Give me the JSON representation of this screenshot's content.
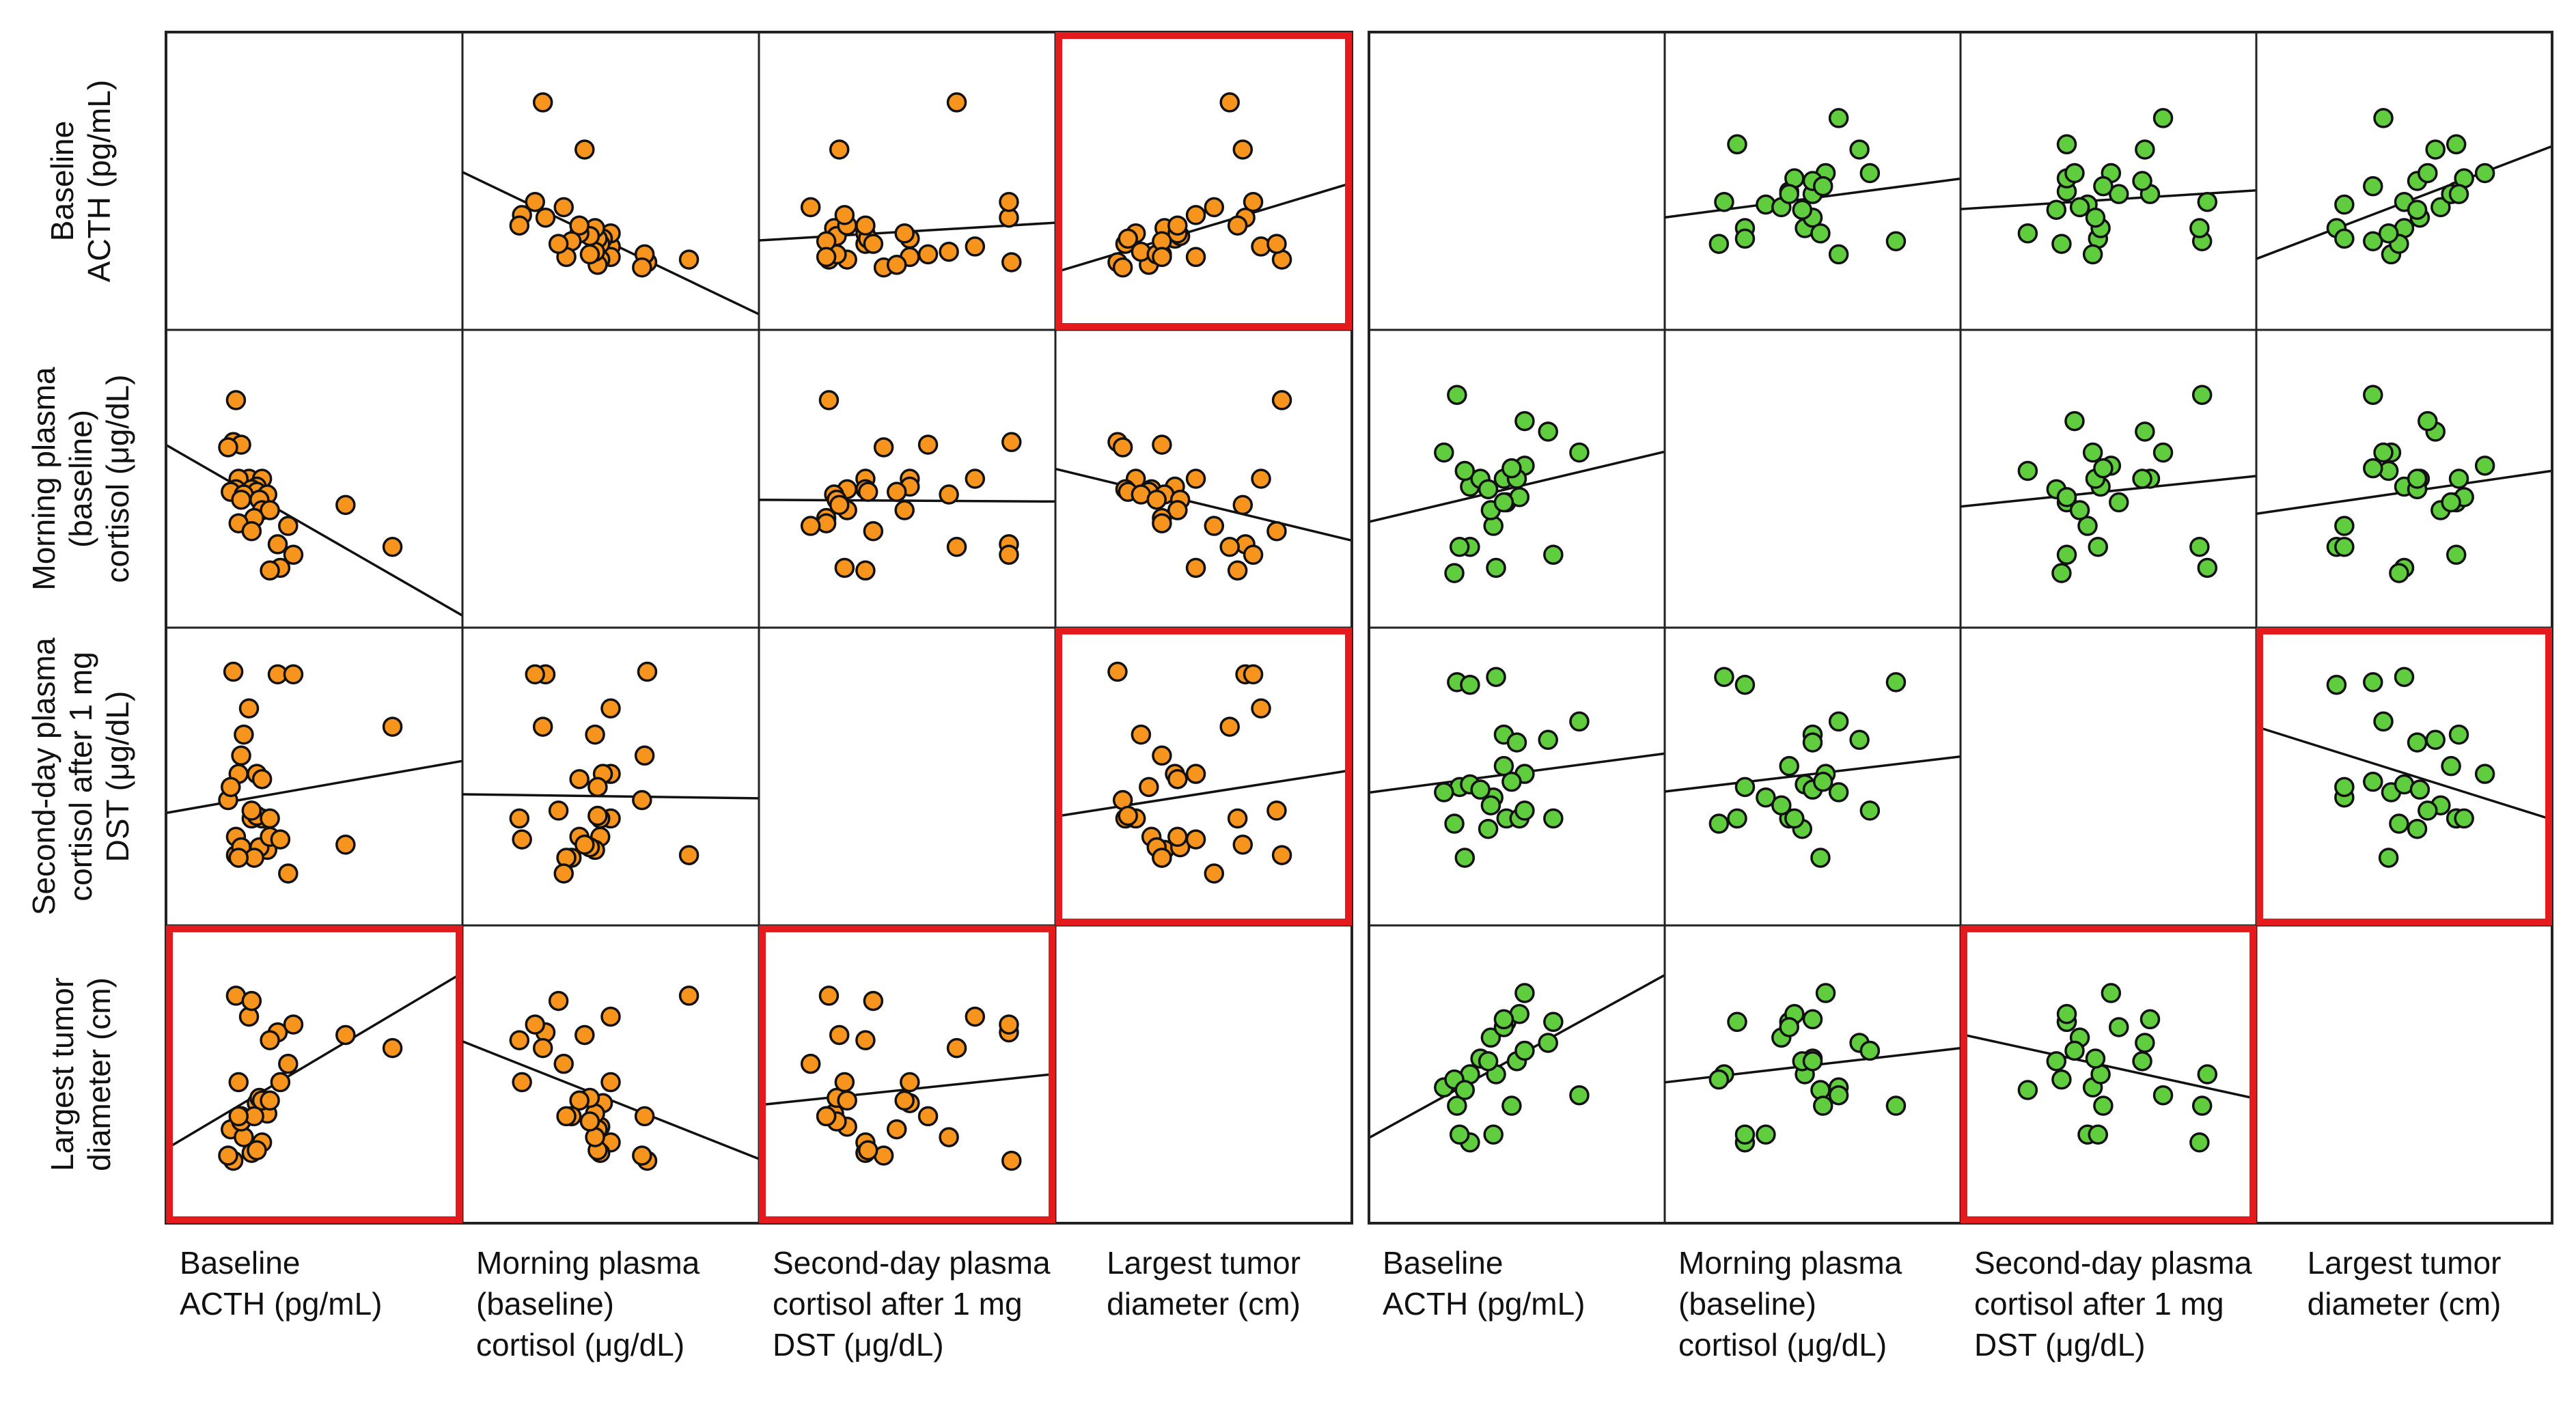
{
  "colors": {
    "left_points": "#f7941d",
    "right_points": "#5fcd3e",
    "highlight": "#e41a1c",
    "line": "#111111"
  },
  "chart_data": {
    "type": "scatter",
    "variables": [
      "Baseline ACTH (pg/mL)",
      "Morning plasma (baseline) cortisol (μg/dL)",
      "Second-day plasma cortisol after 1 mg DST (μg/dL)",
      "Largest tumor diameter (cm)"
    ],
    "row_labels": [
      [
        "Baseline",
        "ACTH (pg/mL)"
      ],
      [
        "Morning plasma",
        "(baseline)",
        "cortisol (μg/dL)"
      ],
      [
        "Second-day plasma",
        "cortisol after 1 mg",
        "DST (μg/dL)"
      ],
      [
        "Largest tumor",
        "diameter (cm)"
      ]
    ],
    "column_labels": [
      [
        "Baseline",
        "ACTH (pg/mL)"
      ],
      [
        "Morning plasma",
        "(baseline)",
        "cortisol (μg/dL)"
      ],
      [
        "Second-day plasma",
        "cortisol after 1 mg",
        "DST (μg/dL)"
      ],
      [
        "Largest tumor",
        "diameter (cm)"
      ]
    ],
    "axis_range_normalized": [
      0,
      1
    ],
    "panels": [
      {
        "name": "left",
        "point_color": "#f7941d",
        "highlighted_cells": [
          [
            0,
            3
          ],
          [
            2,
            3
          ],
          [
            3,
            0
          ],
          [
            3,
            2
          ]
        ],
        "variables": {
          "v0": [
            0.2,
            0.19,
            0.22,
            0.17,
            0.25,
            0.21,
            0.3,
            0.28,
            0.2,
            0.26,
            0.18,
            0.28,
            0.23,
            0.32,
            0.22,
            0.29,
            0.3,
            0.33,
            0.27,
            0.21,
            0.4,
            0.26,
            0.36,
            0.42,
            0.37,
            0.33,
            0.62,
            0.8
          ],
          "v1": [
            0.8,
            0.64,
            0.63,
            0.62,
            0.5,
            0.5,
            0.5,
            0.47,
            0.46,
            0.46,
            0.45,
            0.45,
            0.44,
            0.44,
            0.42,
            0.42,
            0.38,
            0.38,
            0.35,
            0.33,
            0.32,
            0.3,
            0.25,
            0.21,
            0.16,
            0.15,
            0.4,
            0.24
          ],
          "v2": [
            0.2,
            0.9,
            0.58,
            0.41,
            0.76,
            0.51,
            0.34,
            0.51,
            0.27,
            0.34,
            0.46,
            0.35,
            0.66,
            0.22,
            0.23,
            0.23,
            0.49,
            0.27,
            0.19,
            0.19,
            0.13,
            0.37,
            0.89,
            0.89,
            0.26,
            0.34,
            0.24,
            0.69
          ],
          "v3": [
            0.8,
            0.17,
            0.34,
            0.19,
            0.72,
            0.47,
            0.24,
            0.39,
            0.3,
            0.2,
            0.29,
            0.21,
            0.26,
            0.35,
            0.32,
            0.41,
            0.4,
            0.4,
            0.34,
            0.34,
            0.54,
            0.78,
            0.66,
            0.69,
            0.47,
            0.63,
            0.65,
            0.6
          ]
        }
      },
      {
        "name": "right",
        "point_color": "#5fcd3e",
        "highlighted_cells": [
          [
            2,
            3
          ],
          [
            3,
            2
          ]
        ],
        "variables": {
          "v0": [
            0.27,
            0.64,
            0.32,
            0.41,
            0.42,
            0.28,
            0.22,
            0.53,
            0.46,
            0.32,
            0.36,
            0.26,
            0.39,
            0.4,
            0.51,
            0.45,
            0.3,
            0.45,
            0.5,
            0.48,
            0.74,
            0.62,
            0.53
          ],
          "v1": [
            0.82,
            0.21,
            0.24,
            0.32,
            0.16,
            0.24,
            0.6,
            0.55,
            0.41,
            0.47,
            0.5,
            0.14,
            0.46,
            0.38,
            0.43,
            0.41,
            0.53,
            0.5,
            0.5,
            0.54,
            0.6,
            0.68,
            0.72
          ],
          "v2": [
            0.86,
            0.34,
            0.85,
            0.42,
            0.88,
            0.46,
            0.44,
            0.51,
            0.34,
            0.47,
            0.45,
            0.32,
            0.3,
            0.39,
            0.34,
            0.54,
            0.19,
            0.66,
            0.63,
            0.48,
            0.71,
            0.64,
            0.37
          ],
          "v3": [
            0.38,
            0.7,
            0.24,
            0.27,
            0.5,
            0.27,
            0.45,
            0.81,
            0.7,
            0.5,
            0.56,
            0.48,
            0.55,
            0.64,
            0.73,
            0.68,
            0.44,
            0.71,
            0.55,
            0.38,
            0.42,
            0.62,
            0.59
          ]
        }
      }
    ]
  }
}
